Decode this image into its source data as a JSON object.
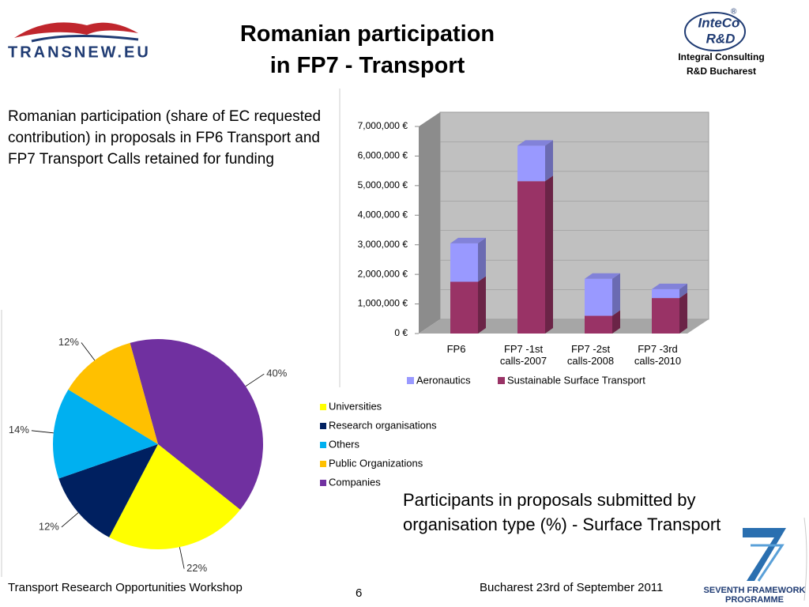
{
  "header": {
    "title_lines": [
      "Romanian participation",
      "in FP7 - Transport"
    ],
    "logo_left": "TRANSNEW.EU",
    "logo_right": [
      "InteCo",
      "R&D"
    ],
    "registered": "®",
    "organisation": [
      "Integral Consulting",
      "R&D Bucharest"
    ]
  },
  "description": "Romanian participation (share of EC requested contribution) in proposals in FP6 Transport and FP7 Transport Calls retained for funding",
  "pie_caption": "Participants in proposals submitted by organisation type (%) - Surface Transport",
  "footer": {
    "left": "Transport Research Opportunities Workshop",
    "page": "6",
    "right": "Bucharest 23rd of September  2011",
    "programme_logo": [
      "SEVENTH FRAMEWORK",
      "PROGRAMME"
    ]
  },
  "chart_data": [
    {
      "type": "bar",
      "stacked": true,
      "categories": [
        "FP6",
        "FP7 -1st calls-2007",
        "FP7 -2st calls-2008",
        "FP7 -3rd calls-2010"
      ],
      "series": [
        {
          "name": "Aeronautics",
          "color": "#9999ff",
          "values": [
            1300000,
            1200000,
            1250000,
            300000
          ]
        },
        {
          "name": "Sustainable Surface Transport",
          "color": "#993366",
          "values": [
            1750000,
            5150000,
            600000,
            1200000
          ]
        }
      ],
      "ylim": [
        0,
        7000000
      ],
      "yticks": [
        {
          "value": 0,
          "label": "0 €"
        },
        {
          "value": 1000000,
          "label": "1,000,000 €"
        },
        {
          "value": 2000000,
          "label": "2,000,000 €"
        },
        {
          "value": 3000000,
          "label": "3,000,000 €"
        },
        {
          "value": 4000000,
          "label": "4,000,000 €"
        },
        {
          "value": 5000000,
          "label": "5,000,000 €"
        },
        {
          "value": 6000000,
          "label": "6,000,000 €"
        },
        {
          "value": 7000000,
          "label": "7,000,000 €"
        }
      ],
      "legend": "bottom"
    },
    {
      "type": "pie",
      "categories": [
        "Universities",
        "Research organisations",
        "Others",
        "Public Organizations",
        "Companies"
      ],
      "colors": [
        "#ffff00",
        "#002060",
        "#00b0f0",
        "#ffc000",
        "#7030a0"
      ],
      "values": [
        22,
        12,
        14,
        12,
        40
      ],
      "value_labels": [
        "22%",
        "12%",
        "14%",
        "12%",
        "40%"
      ],
      "legend": "right"
    }
  ]
}
